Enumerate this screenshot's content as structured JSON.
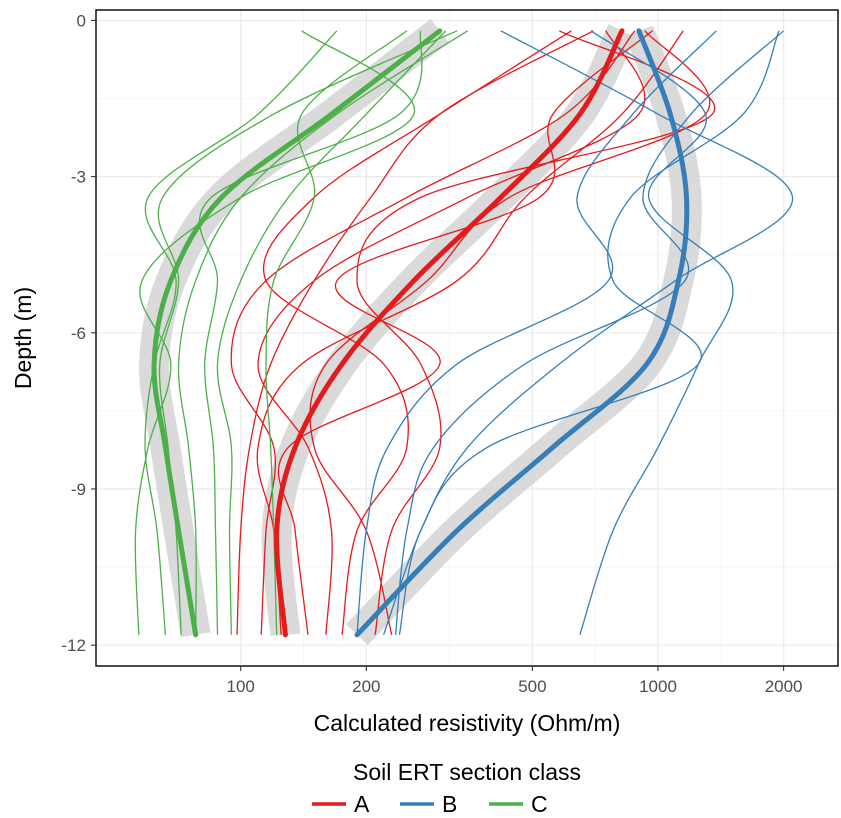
{
  "chart_data": {
    "type": "line",
    "title": "",
    "xlabel": "Calculated resistivity (Ohm/m)",
    "ylabel": "Depth (m)",
    "x_scale": "log",
    "xlim": [
      45,
      2700
    ],
    "ylim": [
      -12.4,
      0.2
    ],
    "x_ticks": [
      100,
      200,
      500,
      1000,
      2000
    ],
    "x_tick_labels": [
      "100",
      "200",
      "500",
      "1000",
      "2000"
    ],
    "y_ticks": [
      0,
      -3,
      -6,
      -9,
      -12
    ],
    "y_tick_labels": [
      "0",
      "-3",
      "-6",
      "-9",
      "-12"
    ],
    "grid": true,
    "legend": {
      "title": "Soil ERT section class",
      "position": "bottom",
      "entries": [
        "A",
        "B",
        "C"
      ]
    },
    "colors": {
      "A": "#e41a1c",
      "B": "#377eb8",
      "C": "#4daf4a",
      "band": "#d3d3d3"
    },
    "depth": [
      -0.2,
      -1.8,
      -3.4,
      -5.0,
      -6.6,
      -8.2,
      -9.8,
      -11.8
    ],
    "series": [
      {
        "name": "A",
        "role": "mean",
        "values": [
          820,
          650,
          420,
          260,
          175,
          135,
          122,
          128
        ]
      },
      {
        "name": "B",
        "role": "mean",
        "values": [
          900,
          1070,
          1170,
          1120,
          940,
          560,
          330,
          190
        ]
      },
      {
        "name": "C",
        "role": "mean",
        "values": [
          300,
          165,
          90,
          68,
          62,
          66,
          71,
          78
        ]
      },
      {
        "class": "A",
        "role": "profile",
        "values": [
          580,
          1350,
          270,
          190,
          270,
          300,
          230,
          210
        ]
      },
      {
        "class": "A",
        "role": "profile",
        "values": [
          750,
          900,
          350,
          150,
          110,
          145,
          165,
          160
        ]
      },
      {
        "class": "A",
        "role": "profile",
        "values": [
          880,
          600,
          250,
          115,
          95,
          120,
          115,
          112
        ]
      },
      {
        "class": "A",
        "role": "profile",
        "values": [
          1150,
          820,
          480,
          330,
          140,
          110,
          120,
          125
        ]
      },
      {
        "class": "A",
        "role": "profile",
        "values": [
          700,
          300,
          205,
          150,
          118,
          105,
          100,
          98
        ]
      },
      {
        "class": "A",
        "role": "profile",
        "values": [
          930,
          1300,
          440,
          280,
          160,
          150,
          200,
          230
        ]
      },
      {
        "class": "A",
        "role": "profile",
        "values": [
          620,
          300,
          150,
          115,
          220,
          250,
          190,
          175
        ]
      },
      {
        "class": "A",
        "role": "profile",
        "values": [
          970,
          560,
          520,
          170,
          300,
          130,
          135,
          145
        ]
      },
      {
        "class": "B",
        "role": "profile",
        "values": [
          690,
          1300,
          950,
          1500,
          1250,
          1000,
          780,
          650
        ]
      },
      {
        "class": "B",
        "role": "profile",
        "values": [
          1380,
          870,
          640,
          760,
          330,
          225,
          200,
          190
        ]
      },
      {
        "class": "B",
        "role": "profile",
        "values": [
          1950,
          1600,
          860,
          780,
          1250,
          390,
          270,
          240
        ]
      },
      {
        "class": "B",
        "role": "profile",
        "values": [
          420,
          1000,
          2100,
          1100,
          580,
          350,
          270,
          220
        ]
      },
      {
        "class": "B",
        "role": "profile",
        "values": [
          2000,
          1200,
          920,
          1160,
          480,
          290,
          250,
          235
        ]
      },
      {
        "class": "C",
        "role": "profile",
        "values": [
          140,
          260,
          100,
          58,
          68,
          60,
          56,
          57
        ]
      },
      {
        "class": "C",
        "role": "profile",
        "values": [
          170,
          110,
          60,
          70,
          62,
          59,
          63,
          66
        ]
      },
      {
        "class": "C",
        "role": "profile",
        "values": [
          330,
          120,
          65,
          71,
          64,
          67,
          70,
          72
        ]
      },
      {
        "class": "C",
        "role": "profile",
        "values": [
          350,
          170,
          100,
          78,
          71,
          75,
          78,
          78
        ]
      },
      {
        "class": "C",
        "role": "profile",
        "values": [
          270,
          240,
          85,
          88,
          82,
          86,
          87,
          88
        ]
      },
      {
        "class": "C",
        "role": "profile",
        "values": [
          310,
          200,
          130,
          100,
          88,
          95,
          94,
          95
        ]
      },
      {
        "class": "C",
        "role": "profile",
        "values": [
          250,
          140,
          150,
          120,
          115,
          118,
          120,
          122
        ]
      }
    ]
  }
}
